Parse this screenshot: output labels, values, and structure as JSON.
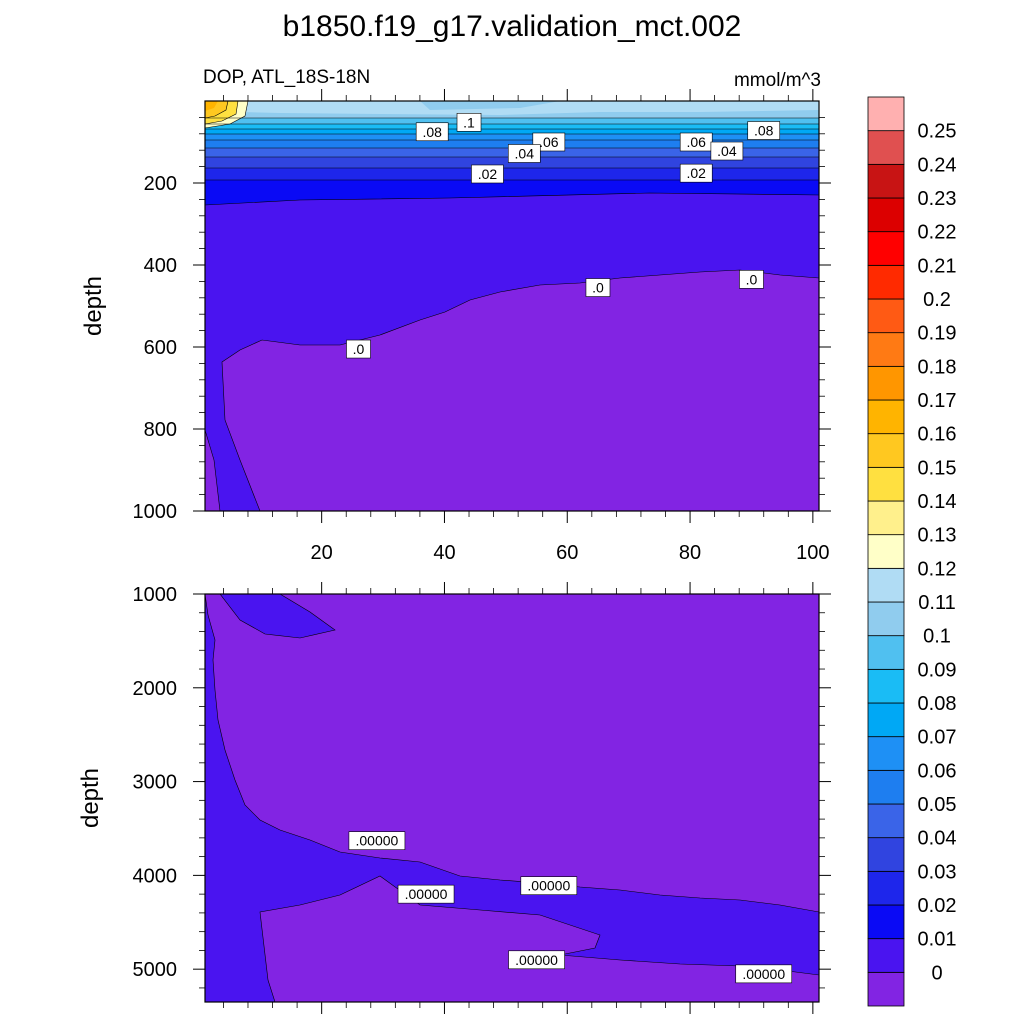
{
  "chart_data": {
    "type": "heatmap",
    "title": "b1850.f19_g17.validation_mct.002",
    "subtitle_left": "DOP, ATL_18S-18N",
    "subtitle_right": "mmol/m^3",
    "ylabel": "depth",
    "xlim": [
      1,
      101
    ],
    "x_ticks": [
      "20",
      "40",
      "60",
      "80",
      "100"
    ],
    "panels": [
      {
        "name": "upper",
        "ylim": [
          0,
          1000
        ],
        "y_ticks": [
          200,
          400,
          600,
          800,
          1000
        ],
        "y_tick_labels": [
          "200",
          "400",
          "600",
          "800",
          "1000"
        ],
        "contour_labels": [
          {
            "text": ".08",
            "x": 38,
            "y": 75
          },
          {
            "text": ".1",
            "x": 44,
            "y": 52
          },
          {
            "text": ".06",
            "x": 57,
            "y": 100
          },
          {
            "text": ".04",
            "x": 53,
            "y": 128
          },
          {
            "text": ".02",
            "x": 47,
            "y": 178
          },
          {
            "text": ".06",
            "x": 81,
            "y": 100
          },
          {
            "text": ".04",
            "x": 86,
            "y": 122
          },
          {
            "text": ".02",
            "x": 81,
            "y": 176
          },
          {
            "text": ".08",
            "x": 92,
            "y": 72
          },
          {
            "text": ".0",
            "x": 26,
            "y": 605
          },
          {
            "text": ".0",
            "x": 65,
            "y": 455
          },
          {
            "text": ".0",
            "x": 90,
            "y": 435
          }
        ]
      },
      {
        "name": "lower",
        "ylim": [
          1000,
          5350
        ],
        "y_ticks": [
          1000,
          2000,
          3000,
          4000,
          5000
        ],
        "y_tick_labels": [
          "1000",
          "2000",
          "3000",
          "4000",
          "5000"
        ],
        "contour_labels": [
          {
            "text": ".00000",
            "x": 29,
            "y": 3630
          },
          {
            "text": ".00000",
            "x": 37,
            "y": 4200
          },
          {
            "text": ".00000",
            "x": 57,
            "y": 4110
          },
          {
            "text": ".00000",
            "x": 55,
            "y": 4900
          },
          {
            "text": ".00000",
            "x": 92,
            "y": 5050
          }
        ]
      }
    ],
    "colorbar": {
      "labels": [
        "0",
        "0.01",
        "0.02",
        "0.03",
        "0.04",
        "0.05",
        "0.06",
        "0.07",
        "0.08",
        "0.09",
        "0.1",
        "0.11",
        "0.12",
        "0.13",
        "0.14",
        "0.15",
        "0.16",
        "0.17",
        "0.18",
        "0.19",
        "0.2",
        "0.21",
        "0.22",
        "0.23",
        "0.24",
        "0.25"
      ],
      "colors": [
        "#8224E3",
        "#4A14F0",
        "#0A0AF5",
        "#1E26EB",
        "#3044E0",
        "#3A64E8",
        "#1E7EF0",
        "#1E90F5",
        "#00A8F5",
        "#1ABCF5",
        "#50C0F0",
        "#90CCEE",
        "#B0DCF4",
        "#FFFFC8",
        "#FFF08C",
        "#FFE040",
        "#FFC820",
        "#FFB400",
        "#FF9600",
        "#FF7A14",
        "#FF5A14",
        "#FF2A00",
        "#FF0000",
        "#DC0000",
        "#C81414",
        "#E05050",
        "#FFB0B0"
      ]
    }
  }
}
